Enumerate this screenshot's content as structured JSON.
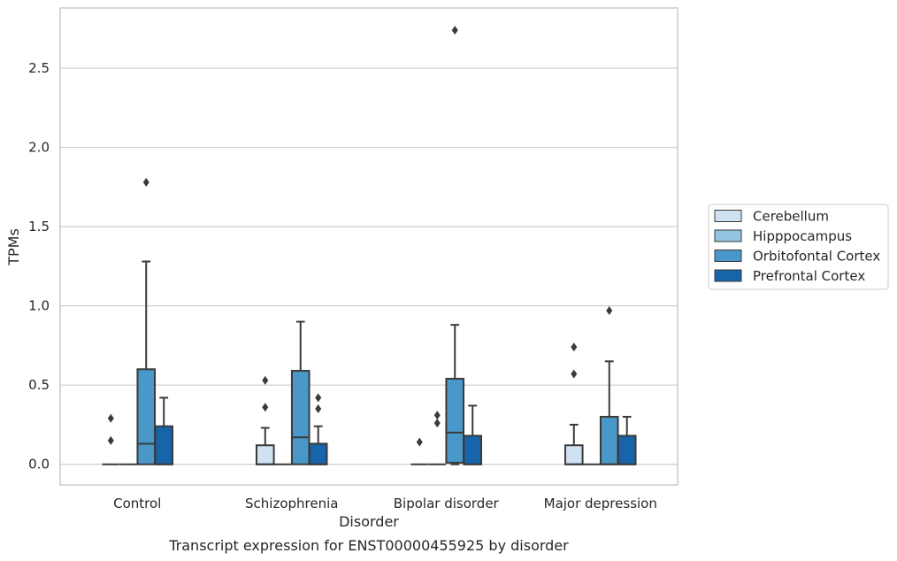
{
  "chart_data": {
    "type": "box",
    "title": "Transcript expression for ENST00000455925 by disorder",
    "xlabel": "Disorder",
    "ylabel": "TPMs",
    "ylim": [
      -0.13,
      2.88
    ],
    "yticks": [
      "0.0",
      "0.5",
      "1.0",
      "1.5",
      "2.0",
      "2.5"
    ],
    "ytick_values": [
      0.0,
      0.5,
      1.0,
      1.5,
      2.0,
      2.5
    ],
    "grid": true,
    "legend_position": "right",
    "categories": [
      "Control",
      "Schizophrenia",
      "Bipolar disorder",
      "Major depression"
    ],
    "series": [
      {
        "name": "Cerebellum",
        "color": "#d0e1f2",
        "boxes": [
          {
            "q1": 0.0,
            "median": 0.0,
            "q3": 0.0,
            "whislo": 0.0,
            "whishi": 0.0,
            "fliers": [
              0.29,
              0.15
            ]
          },
          {
            "q1": 0.0,
            "median": 0.0,
            "q3": 0.12,
            "whislo": 0.0,
            "whishi": 0.23,
            "fliers": [
              0.53,
              0.36
            ]
          },
          {
            "q1": 0.0,
            "median": 0.0,
            "q3": 0.0,
            "whislo": 0.0,
            "whishi": 0.0,
            "fliers": [
              0.14
            ]
          },
          {
            "q1": 0.0,
            "median": 0.0,
            "q3": 0.12,
            "whislo": 0.0,
            "whishi": 0.25,
            "fliers": [
              0.74,
              0.57
            ]
          }
        ]
      },
      {
        "name": "Hipppocampus",
        "color": "#94c4df",
        "boxes": [
          {
            "q1": 0.0,
            "median": 0.0,
            "q3": 0.0,
            "whislo": 0.0,
            "whishi": 0.0,
            "fliers": []
          },
          {
            "q1": 0.0,
            "median": 0.0,
            "q3": 0.0,
            "whislo": 0.0,
            "whishi": 0.0,
            "fliers": []
          },
          {
            "q1": 0.0,
            "median": 0.0,
            "q3": 0.0,
            "whislo": 0.0,
            "whishi": 0.0,
            "fliers": [
              0.31,
              0.26
            ]
          },
          {
            "q1": 0.0,
            "median": 0.0,
            "q3": 0.0,
            "whislo": 0.0,
            "whishi": 0.0,
            "fliers": []
          }
        ]
      },
      {
        "name": "Orbitofontal Cortex",
        "color": "#4a98c9",
        "boxes": [
          {
            "q1": 0.0,
            "median": 0.13,
            "q3": 0.6,
            "whislo": 0.0,
            "whishi": 1.28,
            "fliers": [
              1.78
            ]
          },
          {
            "q1": 0.0,
            "median": 0.17,
            "q3": 0.59,
            "whislo": 0.0,
            "whishi": 0.9,
            "fliers": []
          },
          {
            "q1": 0.01,
            "median": 0.2,
            "q3": 0.54,
            "whislo": 0.0,
            "whishi": 0.88,
            "fliers": [
              2.74
            ]
          },
          {
            "q1": 0.0,
            "median": 0.0,
            "q3": 0.3,
            "whislo": 0.0,
            "whishi": 0.65,
            "fliers": [
              0.97
            ]
          }
        ]
      },
      {
        "name": "Prefrontal Cortex",
        "color": "#1764ab",
        "boxes": [
          {
            "q1": 0.0,
            "median": 0.0,
            "q3": 0.24,
            "whislo": 0.0,
            "whishi": 0.42,
            "fliers": []
          },
          {
            "q1": 0.0,
            "median": 0.0,
            "q3": 0.13,
            "whislo": 0.0,
            "whishi": 0.24,
            "fliers": [
              0.42,
              0.35
            ]
          },
          {
            "q1": 0.0,
            "median": 0.0,
            "q3": 0.18,
            "whislo": 0.0,
            "whishi": 0.37,
            "fliers": []
          },
          {
            "q1": 0.0,
            "median": 0.0,
            "q3": 0.18,
            "whislo": 0.0,
            "whishi": 0.3,
            "fliers": []
          }
        ]
      }
    ]
  }
}
